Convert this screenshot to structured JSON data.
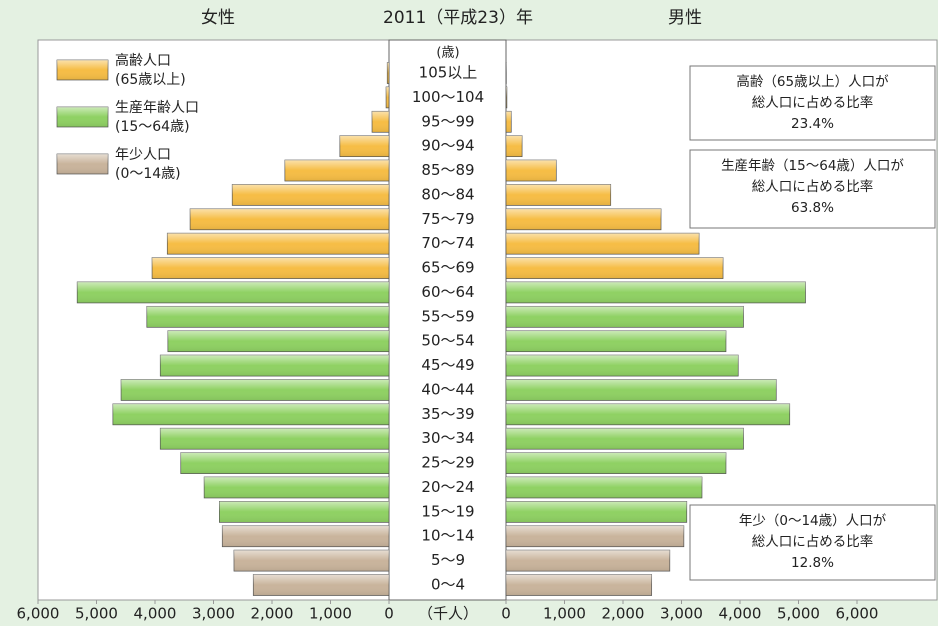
{
  "chart_data": {
    "type": "pyramid",
    "title": "2011（平成23）年",
    "age_header": "(歳)",
    "unit_label": "（千人）",
    "categories": [
      "0～4",
      "5～9",
      "10～14",
      "15～19",
      "20～24",
      "25～29",
      "30～34",
      "35～39",
      "40～44",
      "45～49",
      "50～54",
      "55～59",
      "60～64",
      "65～69",
      "70～74",
      "75～79",
      "80～84",
      "85～89",
      "90～94",
      "95～99",
      "100～104",
      "105以上"
    ],
    "colors": [
      "#c9b49c",
      "#c9b49c",
      "#c9b49c",
      "#8fd163",
      "#8fd163",
      "#8fd163",
      "#8fd163",
      "#8fd163",
      "#8fd163",
      "#8fd163",
      "#8fd163",
      "#8fd163",
      "#8fd163",
      "#f6bd45",
      "#f6bd45",
      "#f6bd45",
      "#f6bd45",
      "#f6bd45",
      "#f6bd45",
      "#f6bd45",
      "#f6bd45",
      "#f6bd45"
    ],
    "series": [
      {
        "name": "女性",
        "side": "left",
        "values": [
          2320,
          2650,
          2850,
          2900,
          3160,
          3560,
          3910,
          4720,
          4580,
          3910,
          3780,
          4140,
          5330,
          4050,
          3790,
          3400,
          2680,
          1780,
          840,
          290,
          50,
          30
        ]
      },
      {
        "name": "男性",
        "side": "right",
        "values": [
          2490,
          2800,
          3040,
          3090,
          3350,
          3760,
          4060,
          4850,
          4620,
          3970,
          3760,
          4060,
          5120,
          3710,
          3300,
          2650,
          1790,
          860,
          275,
          90,
          15,
          5
        ]
      }
    ],
    "legend": [
      {
        "name": "高齢人口",
        "range": "(65歳以上)",
        "color": "#f6bd45"
      },
      {
        "name": "生産年齢人口",
        "range": "(15～64歳)",
        "color": "#8fd163"
      },
      {
        "name": "年少人口",
        "range": "(0～14歳)",
        "color": "#c9b49c"
      }
    ],
    "annotations": [
      {
        "lines": [
          "高齢（65歳以上）人口が",
          "総人口に占める比率",
          "23.4%"
        ]
      },
      {
        "lines": [
          "生産年齢（15～64歳）人口が",
          "総人口に占める比率",
          "63.8%"
        ]
      },
      {
        "lines": [
          "年少（0～14歳）人口が",
          "総人口に占める比率",
          "12.8%"
        ]
      }
    ],
    "xlim": [
      0,
      6000
    ],
    "xticks": [
      0,
      {
        "value": 1000,
        "label": "1,000"
      },
      {
        "value": 2000,
        "label": "2,000"
      },
      {
        "value": 3000,
        "label": "3,000"
      },
      {
        "value": 4000,
        "label": "4,000"
      },
      {
        "value": 5000,
        "label": "5,000"
      },
      {
        "value": 6000,
        "label": "6,000"
      }
    ]
  }
}
